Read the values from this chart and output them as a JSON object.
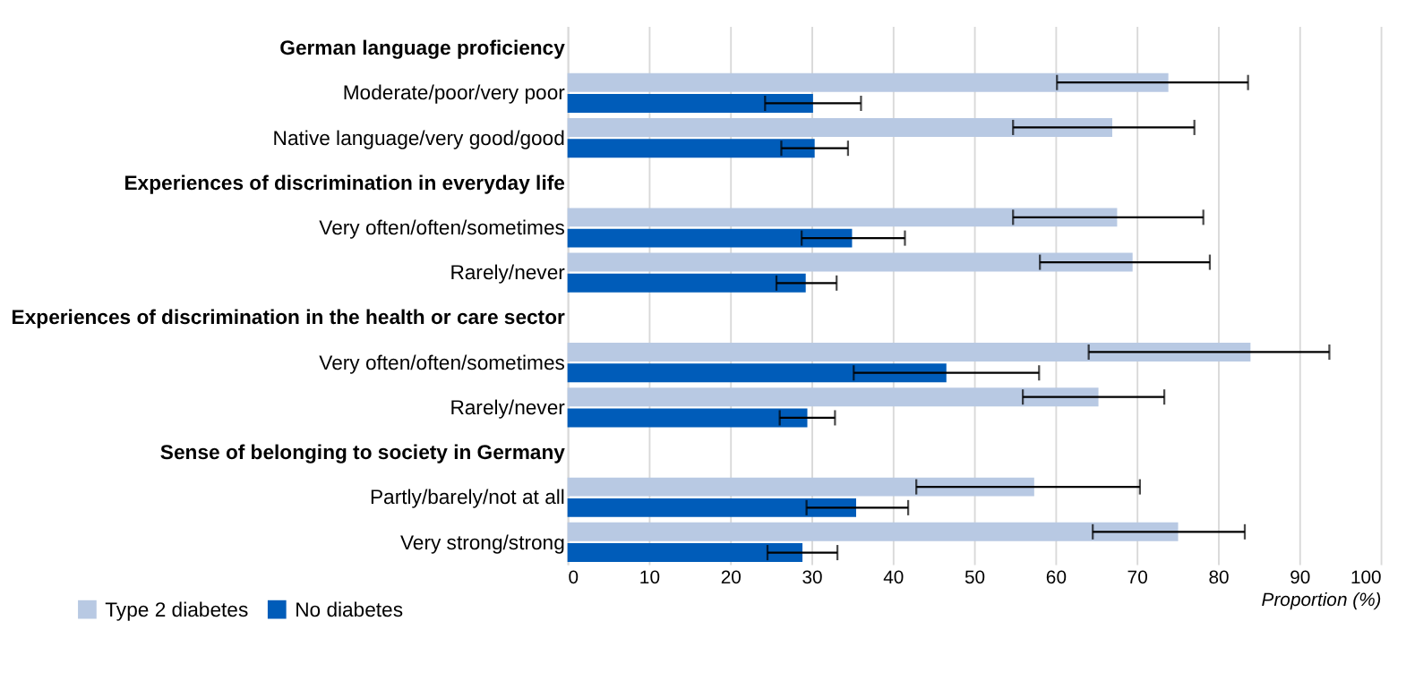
{
  "chart_data": {
    "type": "bar",
    "orientation": "horizontal",
    "categories": [
      "German language proficiency",
      "Moderate/poor/very poor",
      "Native language/very good/good",
      "Experiences of discrimination in everyday life",
      "Very often/often/sometimes",
      "Rarely/never",
      "Experiences of discrimination in the health or care sector",
      "Very often/often/sometimes",
      "Rarely/never",
      "Sense of belonging to society in Germany",
      "Partly/barely/not at all",
      "Very strong/strong"
    ],
    "series": [
      {
        "name": "Type 2 diabetes",
        "color": "#b8c9e3",
        "values": [
          null,
          73.9,
          67.0,
          null,
          67.6,
          69.5,
          null,
          84.0,
          65.3,
          null,
          57.4,
          75.1
        ],
        "errors": [
          null,
          [
            60.2,
            83.7
          ],
          [
            54.8,
            77.1
          ],
          null,
          [
            54.8,
            78.2
          ],
          [
            58.1,
            79.0
          ],
          null,
          [
            64.1,
            93.7
          ],
          [
            56.0,
            73.4
          ],
          null,
          [
            42.9,
            70.4
          ],
          [
            64.6,
            83.3
          ]
        ]
      },
      {
        "name": "No diabetes",
        "color": "#005cb9",
        "values": [
          null,
          30.2,
          30.4,
          null,
          35.0,
          29.3,
          null,
          46.6,
          29.5,
          null,
          35.5,
          28.9
        ],
        "errors": [
          null,
          [
            24.3,
            36.1
          ],
          [
            26.3,
            34.5
          ],
          null,
          [
            28.8,
            41.5
          ],
          [
            25.7,
            33.1
          ],
          null,
          [
            35.2,
            58.0
          ],
          [
            26.1,
            32.9
          ],
          null,
          [
            29.4,
            41.9
          ],
          [
            24.6,
            33.2
          ]
        ]
      }
    ],
    "xlabel": "Proportion (%)",
    "xlim": [
      0,
      100
    ],
    "xticks": [
      0,
      10,
      20,
      30,
      40,
      50,
      60,
      70,
      80,
      90,
      100
    ],
    "grid": "x",
    "legend": "bottom left"
  }
}
